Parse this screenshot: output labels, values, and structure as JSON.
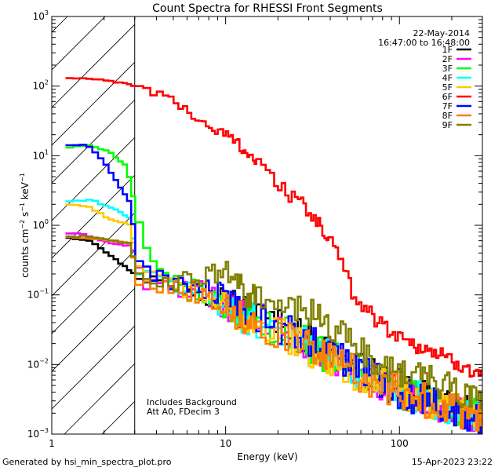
{
  "chart_data": {
    "type": "line",
    "title": "Count Spectra for RHESSI Front Segments",
    "xlabel": "Energy (keV)",
    "ylabel_parts": {
      "base": "counts cm",
      "e1": "−2",
      "mid": " s",
      "e2": "−1",
      "mid2": " keV",
      "e3": "−1"
    },
    "x_scale": "log",
    "y_scale": "log",
    "xlim": [
      1,
      300
    ],
    "ylim": [
      0.001,
      1000
    ],
    "x_ticks": [
      {
        "value": 1,
        "label": "1"
      },
      {
        "value": 10,
        "label": "10"
      },
      {
        "value": 100,
        "label": "100"
      }
    ],
    "y_ticks": [
      {
        "value": 0.001,
        "mant": "10",
        "exp": "−3"
      },
      {
        "value": 0.01,
        "mant": "10",
        "exp": "−2"
      },
      {
        "value": 0.1,
        "mant": "10",
        "exp": "−1"
      },
      {
        "value": 1,
        "mant": "10",
        "exp": "0"
      },
      {
        "value": 10,
        "mant": "10",
        "exp": "1"
      },
      {
        "value": 100,
        "mant": "10",
        "exp": "2"
      },
      {
        "value": 1000,
        "mant": "10",
        "exp": "3"
      }
    ],
    "hatched_region": {
      "x_from": 1,
      "x_to": 3
    },
    "date": "22-May-2014",
    "time_range": "16:47:00 to 16:48:00",
    "annotations": [
      "Includes Background",
      "Att A0, FDecim 3"
    ],
    "series": [
      {
        "name": "1F",
        "color": "#000000",
        "noise": 0.25,
        "points": [
          [
            1.2,
            0.68
          ],
          [
            1.7,
            0.6
          ],
          [
            2.3,
            0.33
          ],
          [
            3,
            0.2
          ],
          [
            4,
            0.16
          ],
          [
            6,
            0.13
          ],
          [
            10,
            0.09
          ],
          [
            15,
            0.05
          ],
          [
            25,
            0.03
          ],
          [
            40,
            0.015
          ],
          [
            70,
            0.007
          ],
          [
            120,
            0.004
          ],
          [
            200,
            0.0025
          ],
          [
            300,
            0.0016
          ]
        ]
      },
      {
        "name": "2F",
        "color": "#ff00ff",
        "noise": 0.25,
        "points": [
          [
            1.2,
            0.78
          ],
          [
            1.6,
            0.72
          ],
          [
            2.2,
            0.55
          ],
          [
            2.9,
            0.5
          ],
          [
            3.3,
            0.15
          ],
          [
            5,
            0.13
          ],
          [
            8,
            0.1
          ],
          [
            12,
            0.055
          ],
          [
            20,
            0.035
          ],
          [
            35,
            0.016
          ],
          [
            60,
            0.008
          ],
          [
            100,
            0.004
          ],
          [
            180,
            0.0025
          ],
          [
            300,
            0.0017
          ]
        ]
      },
      {
        "name": "3F",
        "color": "#00ff00",
        "noise": 0.25,
        "points": [
          [
            1.2,
            13
          ],
          [
            1.6,
            14
          ],
          [
            2.1,
            12
          ],
          [
            2.7,
            7
          ],
          [
            3.2,
            1.0
          ],
          [
            3.6,
            0.3
          ],
          [
            5,
            0.14
          ],
          [
            8,
            0.1
          ],
          [
            13,
            0.045
          ],
          [
            20,
            0.035
          ],
          [
            35,
            0.015
          ],
          [
            60,
            0.008
          ],
          [
            100,
            0.004
          ],
          [
            180,
            0.0025
          ],
          [
            300,
            0.0018
          ]
        ]
      },
      {
        "name": "4F",
        "color": "#00ffff",
        "noise": 0.25,
        "points": [
          [
            1.2,
            2.2
          ],
          [
            1.7,
            2.3
          ],
          [
            2.3,
            1.7
          ],
          [
            2.8,
            1.3
          ],
          [
            3.2,
            0.2
          ],
          [
            5,
            0.14
          ],
          [
            8,
            0.1
          ],
          [
            12,
            0.05
          ],
          [
            20,
            0.035
          ],
          [
            35,
            0.015
          ],
          [
            60,
            0.008
          ],
          [
            100,
            0.004
          ],
          [
            180,
            0.0025
          ],
          [
            300,
            0.0017
          ]
        ]
      },
      {
        "name": "5F",
        "color": "#ffc800",
        "noise": 0.25,
        "points": [
          [
            1.2,
            2.0
          ],
          [
            1.6,
            1.9
          ],
          [
            2.2,
            1.2
          ],
          [
            2.8,
            1.05
          ],
          [
            3.2,
            0.2
          ],
          [
            5,
            0.14
          ],
          [
            8,
            0.1
          ],
          [
            12,
            0.05
          ],
          [
            20,
            0.03
          ],
          [
            35,
            0.013
          ],
          [
            60,
            0.007
          ],
          [
            100,
            0.004
          ],
          [
            180,
            0.0025
          ],
          [
            300,
            0.0016
          ]
        ]
      },
      {
        "name": "6F",
        "color": "#ff0000",
        "noise": 0.12,
        "points": [
          [
            1.2,
            130
          ],
          [
            1.6,
            128
          ],
          [
            2.2,
            118
          ],
          [
            2.8,
            105
          ],
          [
            3.3,
            95
          ],
          [
            4,
            80
          ],
          [
            5,
            60
          ],
          [
            6,
            45
          ],
          [
            7,
            33
          ],
          [
            8,
            26
          ],
          [
            10,
            20
          ],
          [
            12,
            15
          ],
          [
            14,
            10
          ],
          [
            16,
            7
          ],
          [
            18,
            5
          ],
          [
            20,
            4
          ],
          [
            25,
            2.5
          ],
          [
            30,
            1.5
          ],
          [
            35,
            1.0
          ],
          [
            40,
            0.6
          ],
          [
            45,
            0.35
          ],
          [
            50,
            0.17
          ],
          [
            55,
            0.1
          ],
          [
            60,
            0.08
          ],
          [
            70,
            0.05
          ],
          [
            90,
            0.03
          ],
          [
            120,
            0.02
          ],
          [
            160,
            0.015
          ],
          [
            200,
            0.011
          ],
          [
            250,
            0.009
          ],
          [
            300,
            0.008
          ]
        ]
      },
      {
        "name": "7F",
        "color": "#0000ff",
        "noise": 0.25,
        "points": [
          [
            1.2,
            14
          ],
          [
            1.6,
            14.5
          ],
          [
            2.0,
            8
          ],
          [
            2.4,
            4
          ],
          [
            2.8,
            2.2
          ],
          [
            3.2,
            0.3
          ],
          [
            4,
            0.18
          ],
          [
            6,
            0.14
          ],
          [
            9,
            0.1
          ],
          [
            13,
            0.05
          ],
          [
            20,
            0.035
          ],
          [
            35,
            0.018
          ],
          [
            60,
            0.009
          ],
          [
            100,
            0.004
          ],
          [
            180,
            0.0025
          ],
          [
            300,
            0.0017
          ]
        ]
      },
      {
        "name": "8F",
        "color": "#ff7f00",
        "noise": 0.25,
        "points": [
          [
            1.2,
            0.68
          ],
          [
            1.6,
            0.66
          ],
          [
            2.2,
            0.6
          ],
          [
            2.8,
            0.55
          ],
          [
            3.2,
            0.16
          ],
          [
            5,
            0.13
          ],
          [
            8,
            0.1
          ],
          [
            12,
            0.05
          ],
          [
            20,
            0.03
          ],
          [
            35,
            0.014
          ],
          [
            60,
            0.007
          ],
          [
            100,
            0.004
          ],
          [
            180,
            0.0025
          ],
          [
            300,
            0.0016
          ]
        ]
      },
      {
        "name": "9F",
        "color": "#808000",
        "noise": 0.22,
        "points": [
          [
            1.2,
            0.68
          ],
          [
            1.6,
            0.7
          ],
          [
            2.2,
            0.6
          ],
          [
            2.8,
            0.55
          ],
          [
            3.2,
            0.18
          ],
          [
            5,
            0.15
          ],
          [
            7,
            0.17
          ],
          [
            9,
            0.2
          ],
          [
            11,
            0.2
          ],
          [
            13,
            0.1
          ],
          [
            18,
            0.07
          ],
          [
            25,
            0.06
          ],
          [
            35,
            0.05
          ],
          [
            50,
            0.022
          ],
          [
            70,
            0.012
          ],
          [
            100,
            0.008
          ],
          [
            150,
            0.006
          ],
          [
            200,
            0.0045
          ],
          [
            300,
            0.003
          ]
        ]
      }
    ]
  },
  "footer": {
    "left": "Generated by hsi_min_spectra_plot.pro",
    "right": "15-Apr-2023 23:22"
  }
}
